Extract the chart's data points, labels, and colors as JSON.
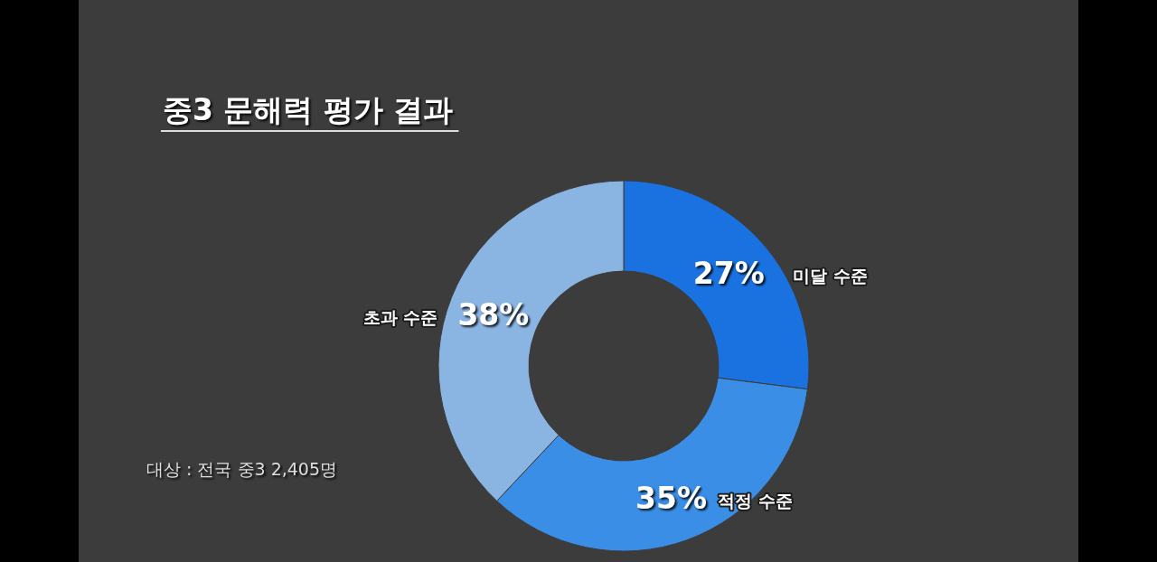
{
  "chart_data": {
    "type": "donut",
    "title": "중3 문해력 평가 결과",
    "categories": [
      "미달 수준",
      "적정 수준",
      "초과 수준"
    ],
    "values": [
      27,
      35,
      38
    ],
    "colors": [
      "#1a72e0",
      "#3a8ee6",
      "#8ab4e2"
    ],
    "value_labels": [
      "27%",
      "35%",
      "38%"
    ],
    "annotations": [
      "대상 : 전국 중3 2,405명"
    ]
  }
}
